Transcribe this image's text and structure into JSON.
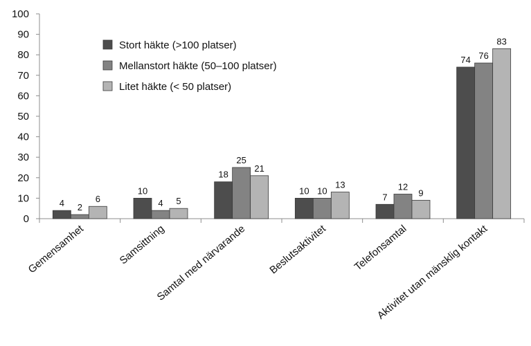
{
  "chart_data": {
    "type": "bar",
    "title": "",
    "xlabel": "",
    "ylabel": "",
    "ylim": [
      0,
      100
    ],
    "yticks": [
      "0",
      "10",
      "20",
      "30",
      "40",
      "50",
      "60",
      "70",
      "80",
      "90",
      "100"
    ],
    "grid": false,
    "legend_position": "top-left",
    "categories": [
      "Gemensamhet",
      "Samsittning",
      "Samtal med närvarande",
      "Beslutsaktivitet",
      "Telefonsamtal",
      "Aktivitet utan mänsklig kontakt"
    ],
    "series": [
      {
        "name": "Stort häkte (>100 platser)",
        "color": "#4d4d4d",
        "values": [
          4,
          10,
          18,
          10,
          7,
          74
        ],
        "labels": [
          "4",
          "10",
          "18",
          "10",
          "7",
          "74"
        ]
      },
      {
        "name": "Mellanstort häkte (50–100 platser)",
        "color": "#838383",
        "values": [
          2,
          4,
          25,
          10,
          12,
          76
        ],
        "labels": [
          "2",
          "4",
          "25",
          "10",
          "12",
          "76"
        ]
      },
      {
        "name": "Litet häkte (< 50 platser)",
        "color": "#b4b4b4",
        "values": [
          6,
          5,
          21,
          13,
          9,
          83
        ],
        "labels": [
          "6",
          "5",
          "21",
          "13",
          "9",
          "83"
        ]
      }
    ]
  }
}
